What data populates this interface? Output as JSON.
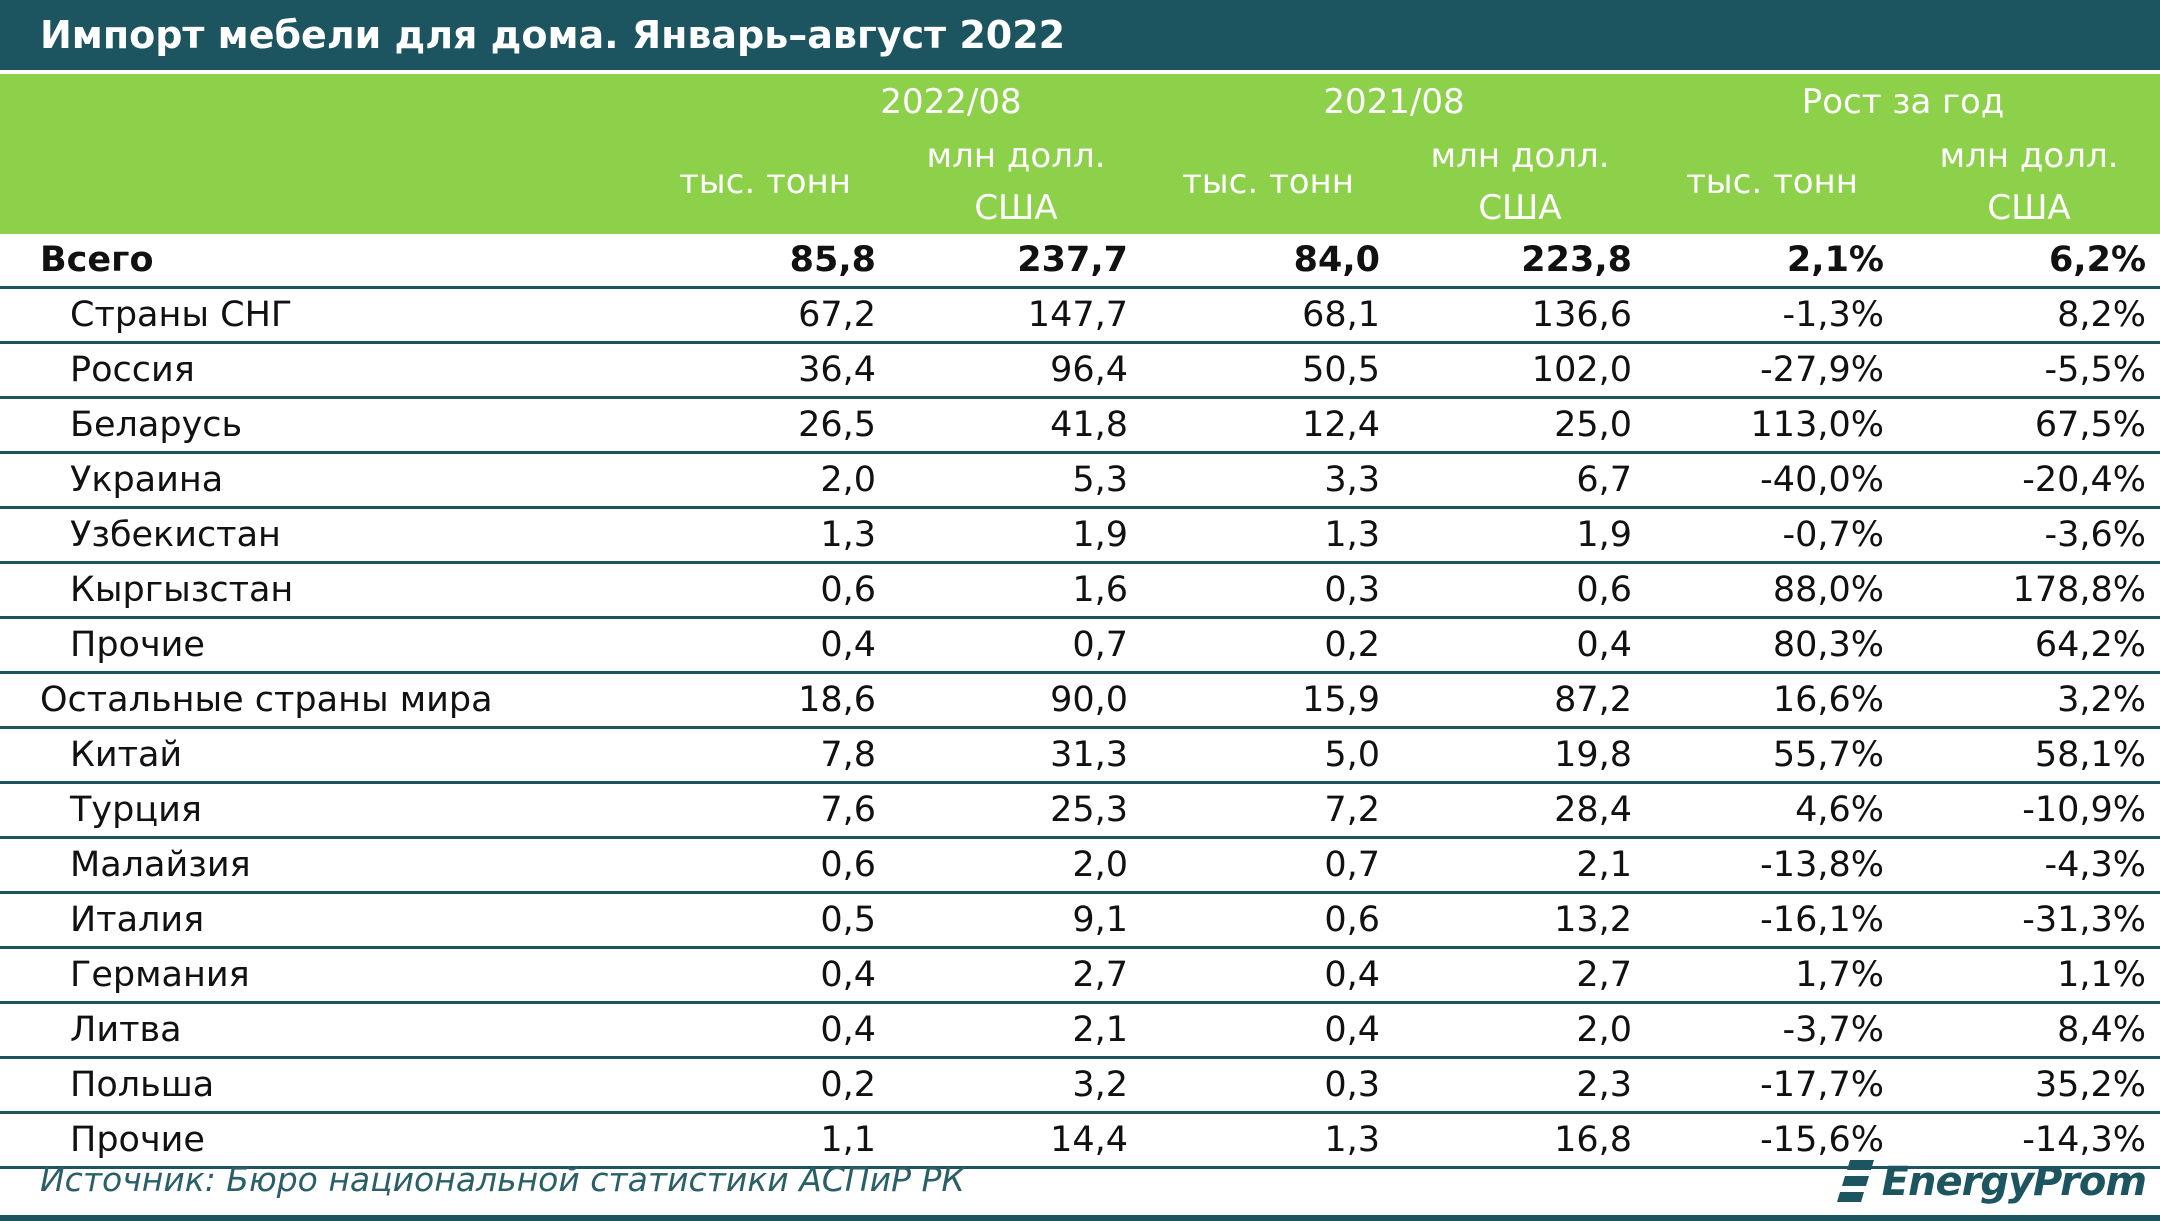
{
  "title": "Импорт мебели для дома. Январь–август 2022",
  "colors": {
    "header_dark": "#1c5560",
    "header_green": "#8dd14b",
    "rule": "#1c5560"
  },
  "chart_data": {
    "type": "table",
    "title": "Импорт мебели для дома. Январь–август 2022",
    "periods": [
      "2022/08",
      "2021/08",
      "Рост за год"
    ],
    "units": [
      "тыс. тонн",
      "млн долл. США"
    ],
    "rows": [
      {
        "label": "Всего",
        "level": 0,
        "bold": true,
        "values": [
          "85,8",
          "237,7",
          "84,0",
          "223,8",
          "2,1%",
          "6,2%"
        ]
      },
      {
        "label": "Страны СНГ",
        "level": 1,
        "values": [
          "67,2",
          "147,7",
          "68,1",
          "136,6",
          "-1,3%",
          "8,2%"
        ]
      },
      {
        "label": "Россия",
        "level": 1,
        "values": [
          "36,4",
          "96,4",
          "50,5",
          "102,0",
          "-27,9%",
          "-5,5%"
        ]
      },
      {
        "label": "Беларусь",
        "level": 1,
        "values": [
          "26,5",
          "41,8",
          "12,4",
          "25,0",
          "113,0%",
          "67,5%"
        ]
      },
      {
        "label": "Украина",
        "level": 1,
        "values": [
          "2,0",
          "5,3",
          "3,3",
          "6,7",
          "-40,0%",
          "-20,4%"
        ]
      },
      {
        "label": "Узбекистан",
        "level": 1,
        "values": [
          "1,3",
          "1,9",
          "1,3",
          "1,9",
          "-0,7%",
          "-3,6%"
        ]
      },
      {
        "label": "Кыргызстан",
        "level": 1,
        "values": [
          "0,6",
          "1,6",
          "0,3",
          "0,6",
          "88,0%",
          "178,8%"
        ]
      },
      {
        "label": "Прочие",
        "level": 1,
        "values": [
          "0,4",
          "0,7",
          "0,2",
          "0,4",
          "80,3%",
          "64,2%"
        ]
      },
      {
        "label": "Остальные страны мира",
        "level": 0,
        "values": [
          "18,6",
          "90,0",
          "15,9",
          "87,2",
          "16,6%",
          "3,2%"
        ]
      },
      {
        "label": "Китай",
        "level": 1,
        "values": [
          "7,8",
          "31,3",
          "5,0",
          "19,8",
          "55,7%",
          "58,1%"
        ]
      },
      {
        "label": "Турция",
        "level": 1,
        "values": [
          "7,6",
          "25,3",
          "7,2",
          "28,4",
          "4,6%",
          "-10,9%"
        ]
      },
      {
        "label": "Малайзия",
        "level": 1,
        "values": [
          "0,6",
          "2,0",
          "0,7",
          "2,1",
          "-13,8%",
          "-4,3%"
        ]
      },
      {
        "label": "Италия",
        "level": 1,
        "values": [
          "0,5",
          "9,1",
          "0,6",
          "13,2",
          "-16,1%",
          "-31,3%"
        ]
      },
      {
        "label": "Германия",
        "level": 1,
        "values": [
          "0,4",
          "2,7",
          "0,4",
          "2,7",
          "1,7%",
          "1,1%"
        ]
      },
      {
        "label": "Литва",
        "level": 1,
        "values": [
          "0,4",
          "2,1",
          "0,4",
          "2,0",
          "-3,7%",
          "8,4%"
        ]
      },
      {
        "label": "Польша",
        "level": 1,
        "values": [
          "0,2",
          "3,2",
          "0,3",
          "2,3",
          "-17,7%",
          "35,2%"
        ]
      },
      {
        "label": "Прочие",
        "level": 1,
        "values": [
          "1,1",
          "14,4",
          "1,3",
          "16,8",
          "-15,6%",
          "-14,3%"
        ]
      }
    ]
  },
  "source": "Источник: Бюро национальной статистики АСПиР РК",
  "logo": {
    "text": "EnergyProm",
    "icon": "energyprom-logo-icon"
  }
}
